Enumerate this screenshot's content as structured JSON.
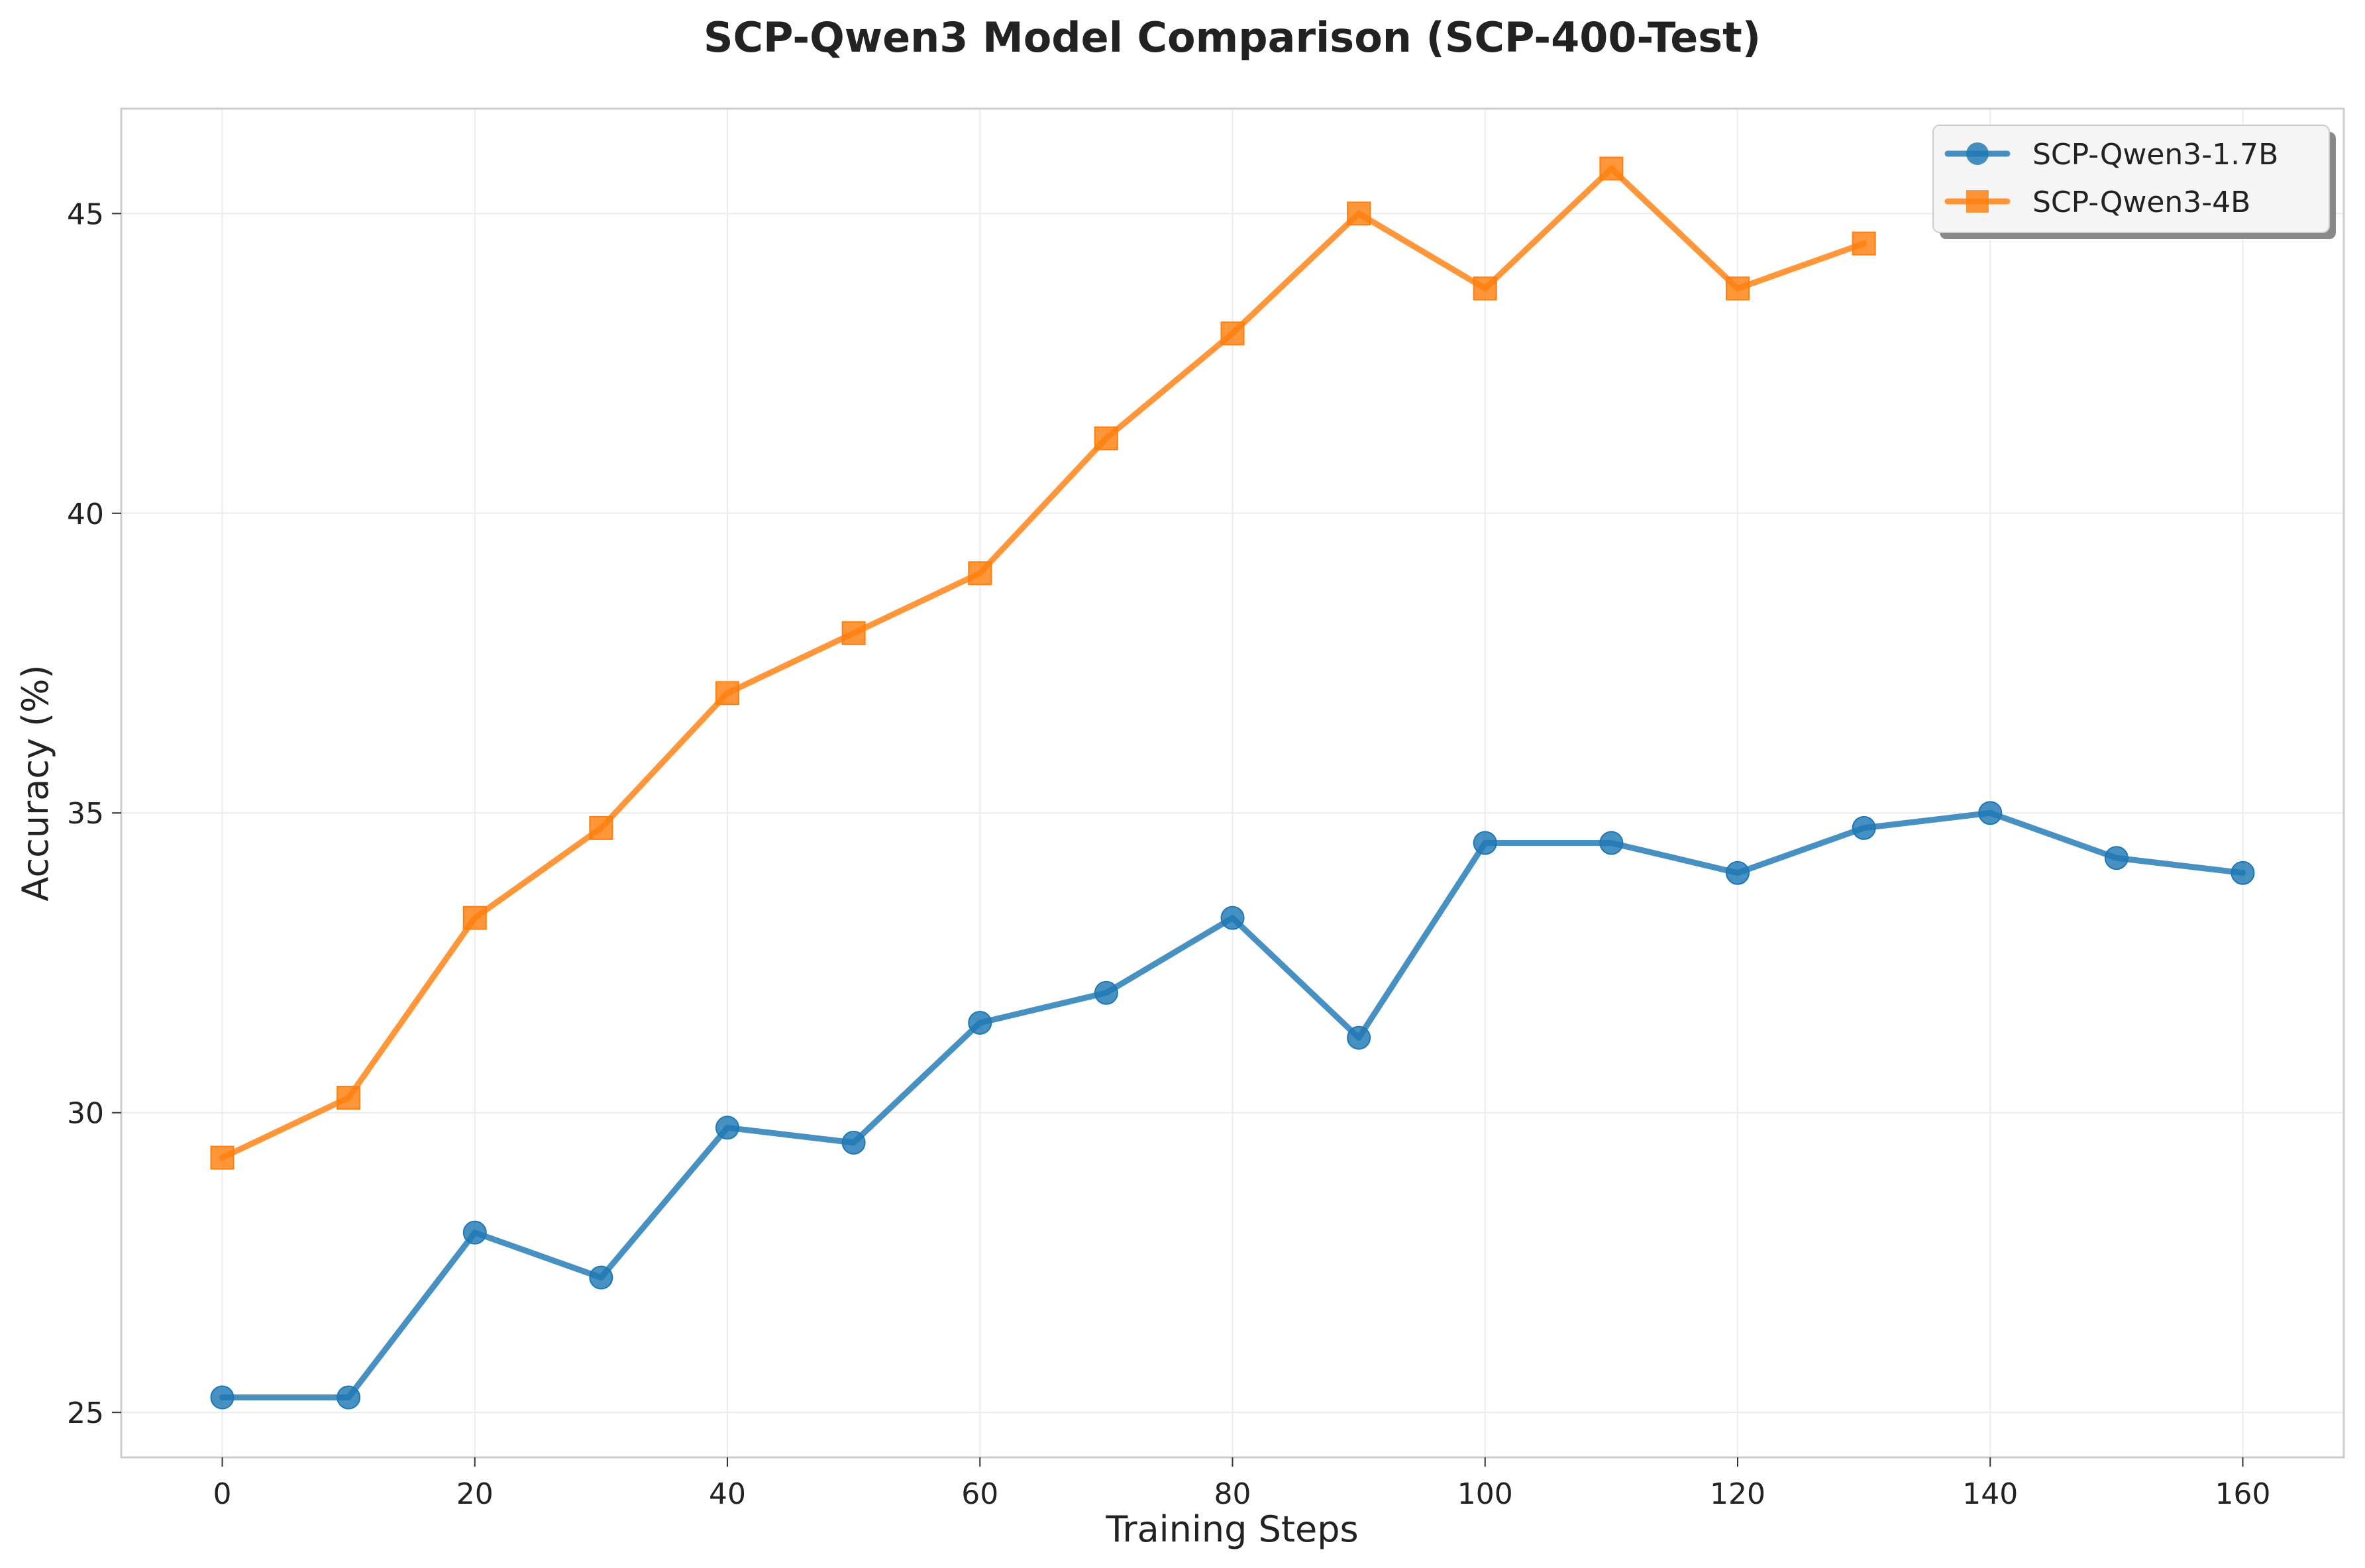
{
  "chart_data": {
    "type": "line",
    "title": "SCP-Qwen3 Model Comparison (SCP-400-Test)",
    "xlabel": "Training Steps",
    "ylabel": "Accuracy (%)",
    "xlim": [
      -8,
      168
    ],
    "ylim": [
      24.25,
      46.75
    ],
    "xticks": [
      0,
      20,
      40,
      60,
      80,
      100,
      120,
      140,
      160
    ],
    "yticks": [
      25,
      30,
      35,
      40,
      45
    ],
    "grid": true,
    "legend_position": "top-right",
    "series": [
      {
        "name": "SCP-Qwen3-1.7B",
        "color": "#1f77b4",
        "marker": "circle",
        "x": [
          0,
          10,
          20,
          30,
          40,
          50,
          60,
          70,
          80,
          90,
          100,
          110,
          120,
          130,
          140,
          150,
          160
        ],
        "y": [
          25.25,
          25.25,
          28.0,
          27.25,
          29.75,
          29.5,
          31.5,
          32.0,
          33.25,
          31.25,
          34.5,
          34.5,
          34.0,
          34.75,
          35.0,
          34.25,
          34.0
        ]
      },
      {
        "name": "SCP-Qwen3-4B",
        "color": "#ff7f0e",
        "marker": "square",
        "x": [
          0,
          10,
          20,
          30,
          40,
          50,
          60,
          70,
          80,
          90,
          100,
          110,
          120,
          130
        ],
        "y": [
          29.25,
          30.25,
          33.25,
          34.75,
          37.0,
          38.0,
          39.0,
          41.25,
          43.0,
          45.0,
          43.75,
          45.75,
          43.75,
          44.5
        ]
      }
    ]
  }
}
